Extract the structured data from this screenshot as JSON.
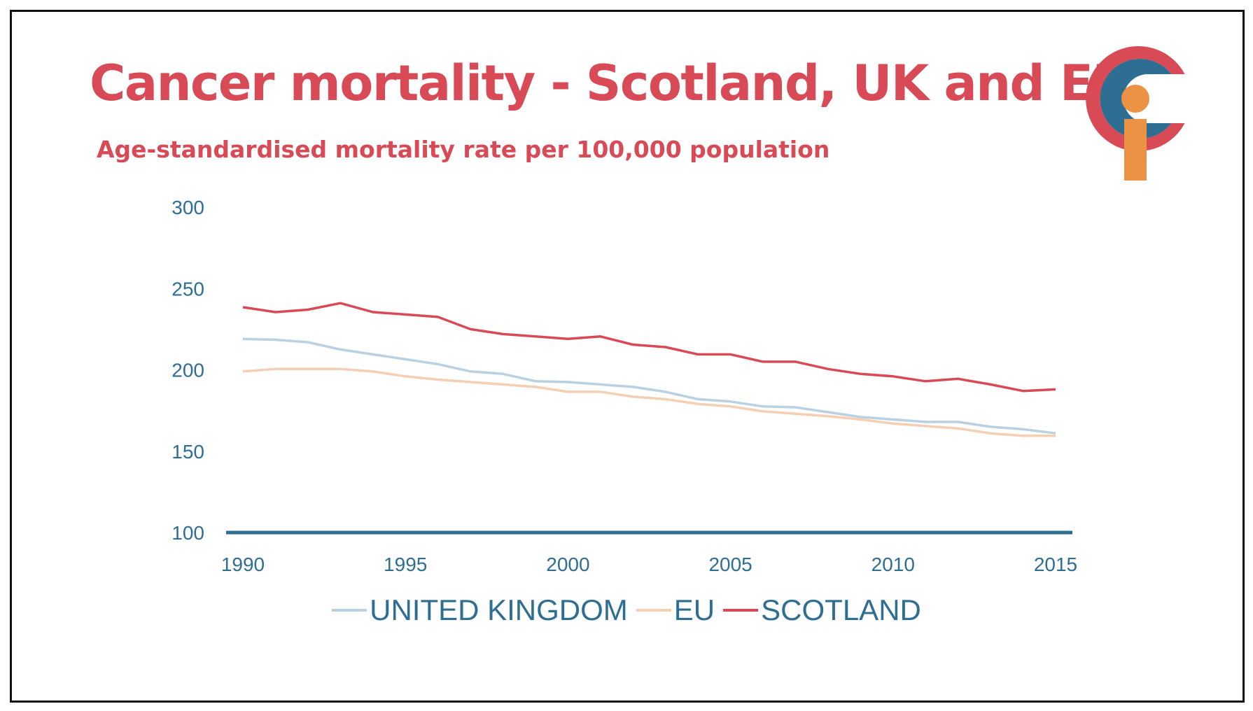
{
  "chart_data": {
    "type": "line",
    "title": "Cancer mortality - Scotland, UK and EU",
    "subtitle": "Age-standardised mortality rate per 100,000 population",
    "xlabel": "",
    "ylabel": "",
    "ylim": [
      100,
      300
    ],
    "xlim": [
      1990,
      2015
    ],
    "yticks": [
      "300",
      "250",
      "200",
      "150",
      "100"
    ],
    "xticks": [
      "1990",
      "1995",
      "2000",
      "2005",
      "2010",
      "2015"
    ],
    "x": [
      1990,
      1991,
      1992,
      1993,
      1994,
      1995,
      1996,
      1997,
      1998,
      1999,
      2000,
      2001,
      2002,
      2003,
      2004,
      2005,
      2006,
      2007,
      2008,
      2009,
      2010,
      2011,
      2012,
      2013,
      2014,
      2015
    ],
    "series": [
      {
        "name": "UNITED KINGDOM",
        "color": "#b9d1e2",
        "values": [
          219,
          218.5,
          217,
          212.5,
          209.5,
          206.5,
          203.5,
          199,
          197.5,
          193,
          192.5,
          191,
          189.5,
          186.5,
          182,
          180.5,
          177.5,
          177,
          174,
          171,
          169.5,
          168,
          168,
          165,
          163.5,
          161
        ]
      },
      {
        "name": "EU",
        "color": "#f5cfb1",
        "values": [
          199,
          200.5,
          200.5,
          200.5,
          199,
          196,
          194,
          192.5,
          191,
          189.5,
          186.5,
          186.5,
          183.5,
          182,
          179,
          177.5,
          174.5,
          173,
          171.5,
          169.5,
          167,
          165.5,
          164,
          161,
          159.5,
          159.5
        ]
      },
      {
        "name": "SCOTLAND",
        "color": "#d84a55",
        "values": [
          238.5,
          235.5,
          237,
          241,
          235.5,
          234,
          232.5,
          225,
          222,
          220.5,
          219,
          220.5,
          215.5,
          214,
          209.5,
          209.5,
          205,
          205,
          200.5,
          197.5,
          196,
          193,
          194.5,
          191,
          187,
          188
        ]
      }
    ],
    "axis_color": "#2e6e93",
    "legend_position": "bottom"
  },
  "logo": {
    "colors": {
      "outer": "#d84a55",
      "inner": "#2e6e93",
      "dot": "#ec9244"
    }
  }
}
